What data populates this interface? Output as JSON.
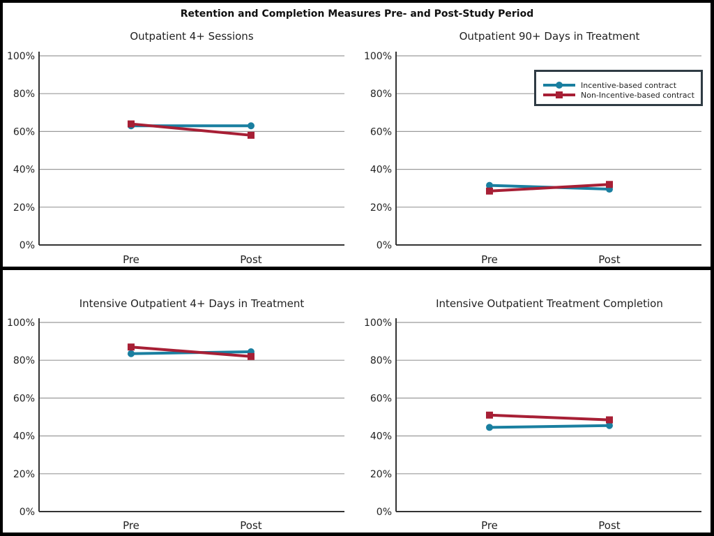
{
  "title": "Retention and Completion Measures Pre- and Post-Study Period",
  "legend": {
    "incentive_label": "Incentive-based contract",
    "non_incentive_label": "Non-Incentive-based contract"
  },
  "colors": {
    "incentive": "#1a7fa0",
    "non_incentive": "#a71f35",
    "grid": "#9a9a9a",
    "axis": "#333333"
  },
  "chart_data": [
    {
      "type": "line",
      "title": "Outpatient 4+ Sessions",
      "categories": [
        "Pre",
        "Post"
      ],
      "yticks": [
        "0%",
        "20%",
        "40%",
        "60%",
        "80%",
        "100%"
      ],
      "ylim": [
        0,
        100
      ],
      "series": [
        {
          "name": "Incentive-based contract",
          "marker": "circle",
          "values": [
            63,
            63
          ]
        },
        {
          "name": "Non-Incentive-based contract",
          "marker": "square",
          "values": [
            64,
            58
          ]
        }
      ]
    },
    {
      "type": "line",
      "title": "Outpatient 90+ Days in Treatment",
      "categories": [
        "Pre",
        "Post"
      ],
      "yticks": [
        "0%",
        "20%",
        "40%",
        "60%",
        "80%",
        "100%"
      ],
      "ylim": [
        0,
        100
      ],
      "series": [
        {
          "name": "Incentive-based contract",
          "marker": "circle",
          "values": [
            31.5,
            29.5
          ]
        },
        {
          "name": "Non-Incentive-based contract",
          "marker": "square",
          "values": [
            28.5,
            32
          ]
        }
      ]
    },
    {
      "type": "line",
      "title": "Intensive Outpatient 4+ Days in Treatment",
      "categories": [
        "Pre",
        "Post"
      ],
      "yticks": [
        "0%",
        "20%",
        "40%",
        "60%",
        "80%",
        "100%"
      ],
      "ylim": [
        0,
        100
      ],
      "series": [
        {
          "name": "Incentive-based contract",
          "marker": "circle",
          "values": [
            83.5,
            84.5
          ]
        },
        {
          "name": "Non-Incentive-based contract",
          "marker": "square",
          "values": [
            87,
            82
          ]
        }
      ]
    },
    {
      "type": "line",
      "title": "Intensive Outpatient Treatment Completion",
      "categories": [
        "Pre",
        "Post"
      ],
      "yticks": [
        "0%",
        "20%",
        "40%",
        "60%",
        "80%",
        "100%"
      ],
      "ylim": [
        0,
        100
      ],
      "series": [
        {
          "name": "Incentive-based contract",
          "marker": "circle",
          "values": [
            44.5,
            45.5
          ]
        },
        {
          "name": "Non-Incentive-based contract",
          "marker": "square",
          "values": [
            51,
            48.5
          ]
        }
      ]
    }
  ]
}
